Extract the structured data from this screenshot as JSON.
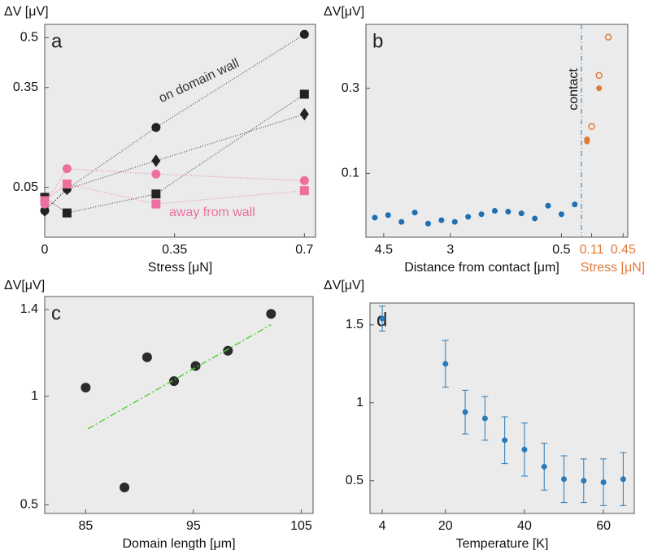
{
  "chart_data": [
    {
      "type": "scatter",
      "panel_label": "a",
      "ylabel": "ΔV [μV]",
      "xlabel": "Stress [μN]",
      "xlim": [
        0,
        0.73
      ],
      "xticks": [
        0,
        0.35,
        0.7
      ],
      "ylim": [
        -0.1,
        0.54
      ],
      "yticks": [
        0.05,
        0.35,
        0.5
      ],
      "x": [
        0,
        0.06,
        0.3,
        0.7
      ],
      "series": [
        {
          "marker": "circle",
          "color": "#222222",
          "line": "dotted",
          "values": [
            -0.02,
            0.045,
            0.23,
            0.51
          ]
        },
        {
          "marker": "square",
          "color": "#222222",
          "line": "dotted",
          "values": [
            0.02,
            -0.027,
            0.03,
            0.33
          ]
        },
        {
          "marker": "diamond",
          "color": "#222222",
          "line": "dotted",
          "values": [
            -0.02,
            0.045,
            0.13,
            0.27
          ]
        },
        {
          "marker": "circle",
          "color": "#ec6fa0",
          "line": "dotted",
          "values": [
            0.0,
            0.106,
            0.09,
            0.07
          ]
        },
        {
          "marker": "square",
          "color": "#ec6fa0",
          "line": "dotted",
          "values": [
            0.01,
            0.06,
            0.0,
            0.04
          ]
        }
      ],
      "annotations": [
        {
          "text": "on domain wall",
          "color": "#333333"
        },
        {
          "text": "away from wall",
          "color": "#ec6fa0"
        }
      ]
    },
    {
      "type": "scatter",
      "panel_label": "b",
      "ylabel": "ΔV[μV]",
      "xlabel": "Distance from contact [μm]",
      "x2label": "Stress [μN]",
      "x2color": "#e07a3a",
      "xlim": [
        4.9,
        0.05
      ],
      "xticks": [
        4.5,
        3,
        0.5
      ],
      "x2lim": [
        0,
        0.5
      ],
      "x2ticks": [
        0.11,
        0.45
      ],
      "ylim": [
        -0.05,
        0.45
      ],
      "yticks": [
        0.1,
        0.3
      ],
      "series": [
        {
          "marker": "circle",
          "color": "#1f6fb2",
          "x": [
            4.7,
            4.4,
            4.1,
            3.8,
            3.5,
            3.2,
            2.9,
            2.6,
            2.3,
            2.0,
            1.7,
            1.4,
            1.1,
            0.8,
            0.5,
            0.2
          ],
          "values": [
            -0.004,
            0.002,
            -0.014,
            0.008,
            -0.018,
            -0.01,
            -0.014,
            -0.002,
            0.004,
            0.012,
            0.01,
            0.006,
            -0.006,
            0.024,
            0.004,
            0.027
          ]
        },
        {
          "marker": "circle",
          "color": "#e07a3a",
          "axis": "x2",
          "x": [
            0.06,
            0.06,
            0.19
          ],
          "values": [
            0.18,
            0.175,
            0.3
          ]
        },
        {
          "marker": "open-circle",
          "color": "#e07a3a",
          "axis": "x2",
          "x": [
            0.11,
            0.19,
            0.29
          ],
          "values": [
            0.21,
            0.33,
            0.42
          ]
        }
      ],
      "annotations": [
        {
          "text": "contact",
          "color": "#111111"
        }
      ]
    },
    {
      "type": "scatter",
      "panel_label": "c",
      "ylabel": "ΔV[μV]",
      "xlabel": "Domain length [μm]",
      "xlim": [
        81.2,
        106.1
      ],
      "xticks": [
        85,
        95,
        105
      ],
      "ylim": [
        0.46,
        1.46
      ],
      "yticks": [
        0.5,
        1,
        1.4
      ],
      "series": [
        {
          "marker": "circle",
          "color": "#2b2b2b",
          "x": [
            85,
            88.6,
            90.7,
            93.2,
            95.2,
            98.2,
            102.2
          ],
          "values": [
            1.04,
            0.58,
            1.18,
            1.07,
            1.14,
            1.21,
            1.38
          ]
        },
        {
          "line": "dash-dot",
          "color": "#55cc33",
          "x": [
            85.2,
            102.2
          ],
          "values": [
            0.85,
            1.33
          ]
        }
      ]
    },
    {
      "type": "scatter",
      "panel_label": "d",
      "ylabel": "ΔV[μV]",
      "xlabel": "Temperature [K]",
      "xlim": [
        0.9,
        67.8
      ],
      "xticks": [
        4,
        20,
        40,
        60
      ],
      "ylim": [
        0.29,
        1.64
      ],
      "yticks": [
        0.5,
        1,
        1.5
      ],
      "series": [
        {
          "marker": "circle",
          "color": "#2a7ab9",
          "x": [
            4,
            20,
            25,
            30,
            35,
            40,
            45,
            50,
            55,
            60,
            65
          ],
          "values": [
            1.54,
            1.25,
            0.94,
            0.9,
            0.76,
            0.7,
            0.59,
            0.51,
            0.5,
            0.49,
            0.51
          ],
          "errors": [
            0.08,
            0.15,
            0.14,
            0.14,
            0.15,
            0.17,
            0.15,
            0.15,
            0.14,
            0.15,
            0.17
          ]
        }
      ]
    }
  ]
}
